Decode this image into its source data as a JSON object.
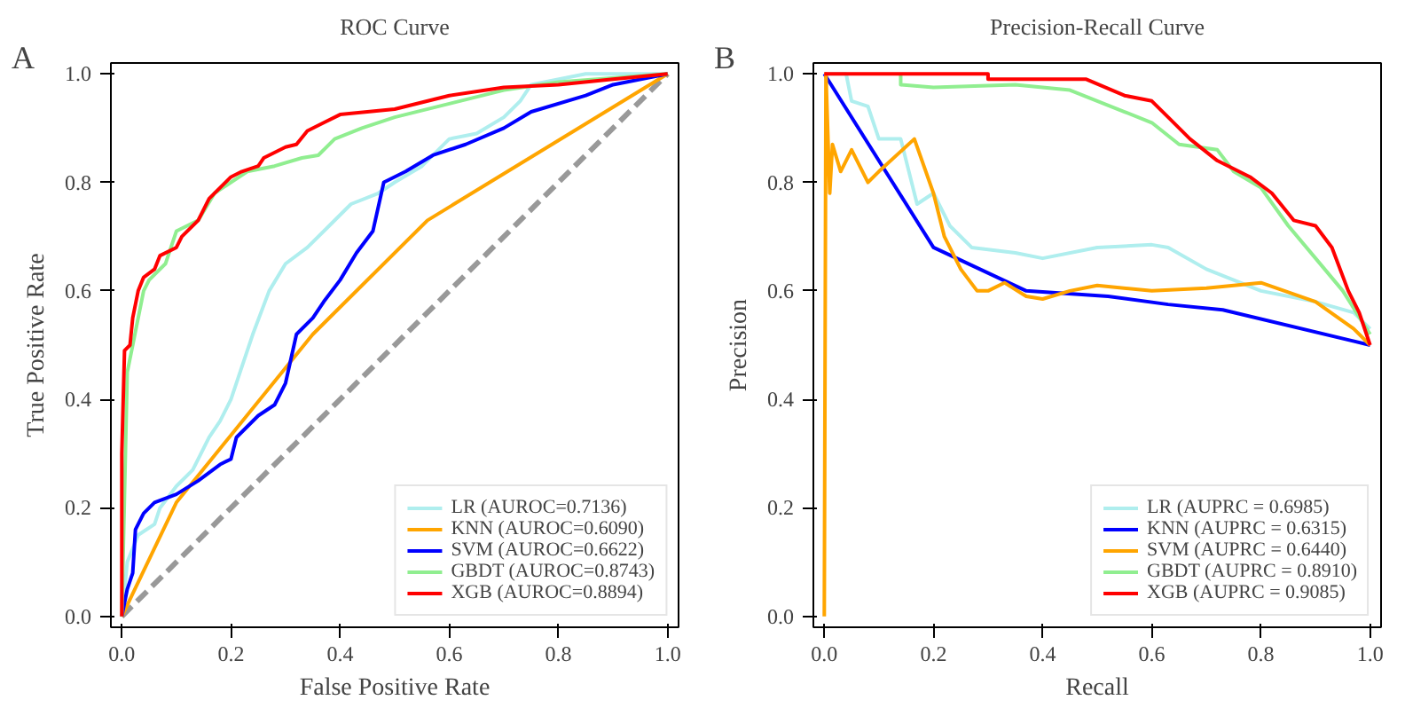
{
  "chart_data": [
    {
      "type": "line",
      "title": "ROC Curve",
      "xlabel": "False Positive Rate",
      "ylabel": "True Positive Rate",
      "annotations": [
        "A"
      ],
      "legend": "bottom right",
      "grid": false,
      "xlim": [
        -0.02,
        1.02
      ],
      "ylim": [
        -0.02,
        1.02
      ],
      "xticks": [
        {
          "value": 0,
          "label": "0.0"
        },
        {
          "value": 0.2,
          "label": "0.2"
        },
        {
          "value": 0.4,
          "label": "0.4"
        },
        {
          "value": 0.6,
          "label": "0.6"
        },
        {
          "value": 0.8,
          "label": "0.8"
        },
        {
          "value": 1,
          "label": "1.0"
        }
      ],
      "yticks": [
        {
          "value": 0,
          "label": "0.0"
        },
        {
          "value": 0.2,
          "label": "0.2"
        },
        {
          "value": 0.4,
          "label": "0.4"
        },
        {
          "value": 0.6,
          "label": "0.6"
        },
        {
          "value": 0.8,
          "label": "0.8"
        },
        {
          "value": 1,
          "label": "1.0"
        }
      ],
      "series": [
        {
          "color": "#999999",
          "line_style": "dashed",
          "x": [
            0,
            1
          ],
          "values": [
            0,
            1
          ]
        },
        {
          "name": "LR (AUROC=0.7136)",
          "color": "#afeeee",
          "x": [
            0,
            0.01,
            0.03,
            0.06,
            0.07,
            0.1,
            0.13,
            0.16,
            0.18,
            0.2,
            0.22,
            0.24,
            0.27,
            0.3,
            0.34,
            0.38,
            0.42,
            0.47,
            0.5,
            0.55,
            0.6,
            0.65,
            0.7,
            0.73,
            0.75,
            0.85,
            1
          ],
          "values": [
            0,
            0.1,
            0.15,
            0.17,
            0.2,
            0.24,
            0.27,
            0.33,
            0.36,
            0.4,
            0.46,
            0.52,
            0.6,
            0.65,
            0.68,
            0.72,
            0.76,
            0.78,
            0.8,
            0.83,
            0.88,
            0.89,
            0.92,
            0.95,
            0.98,
            1,
            1
          ]
        },
        {
          "name": "KNN (AUROC=0.6090)",
          "color": "#ffa500",
          "x": [
            0,
            0.1,
            0.35,
            0.56,
            1
          ],
          "values": [
            0,
            0.21,
            0.52,
            0.73,
            1
          ]
        },
        {
          "name": "SVM (AUROC=0.6622)",
          "color": "#0000ff",
          "x": [
            0,
            0.01,
            0.02,
            0.025,
            0.04,
            0.06,
            0.1,
            0.14,
            0.18,
            0.2,
            0.21,
            0.25,
            0.28,
            0.3,
            0.32,
            0.35,
            0.37,
            0.4,
            0.43,
            0.46,
            0.48,
            0.52,
            0.57,
            0.63,
            0.7,
            0.75,
            0.85,
            0.9,
            1
          ],
          "values": [
            0,
            0.05,
            0.08,
            0.16,
            0.19,
            0.21,
            0.225,
            0.25,
            0.28,
            0.29,
            0.33,
            0.37,
            0.39,
            0.43,
            0.52,
            0.55,
            0.58,
            0.62,
            0.67,
            0.71,
            0.8,
            0.82,
            0.85,
            0.87,
            0.9,
            0.93,
            0.96,
            0.98,
            1
          ]
        },
        {
          "name": "GBDT (AUROC=0.8743)",
          "color": "#90ee90",
          "x": [
            0,
            0.01,
            0.02,
            0.04,
            0.05,
            0.08,
            0.1,
            0.14,
            0.17,
            0.2,
            0.23,
            0.28,
            0.33,
            0.36,
            0.39,
            0.44,
            0.5,
            0.6,
            0.7,
            0.8,
            1
          ],
          "values": [
            0,
            0.45,
            0.5,
            0.6,
            0.62,
            0.65,
            0.71,
            0.73,
            0.78,
            0.8,
            0.82,
            0.83,
            0.845,
            0.85,
            0.88,
            0.9,
            0.92,
            0.945,
            0.97,
            0.985,
            1
          ]
        },
        {
          "name": "XGB (AUROC=0.8894)",
          "color": "#ff0000",
          "x": [
            0,
            0,
            0.005,
            0.015,
            0.02,
            0.03,
            0.04,
            0.06,
            0.07,
            0.1,
            0.11,
            0.14,
            0.16,
            0.18,
            0.2,
            0.22,
            0.25,
            0.26,
            0.3,
            0.32,
            0.34,
            0.37,
            0.4,
            0.5,
            0.6,
            0.7,
            0.8,
            0.9,
            1
          ],
          "values": [
            0,
            0.3,
            0.49,
            0.5,
            0.55,
            0.6,
            0.625,
            0.64,
            0.665,
            0.68,
            0.7,
            0.73,
            0.77,
            0.79,
            0.81,
            0.82,
            0.83,
            0.845,
            0.865,
            0.87,
            0.895,
            0.91,
            0.925,
            0.935,
            0.96,
            0.975,
            0.98,
            0.99,
            1
          ]
        }
      ]
    },
    {
      "type": "line",
      "title": "Precision-Recall Curve",
      "xlabel": "Recall",
      "ylabel": "Precision",
      "annotations": [
        "B"
      ],
      "legend": "bottom right",
      "grid": false,
      "xlim": [
        -0.02,
        1.02
      ],
      "ylim": [
        -0.02,
        1.02
      ],
      "xticks": [
        {
          "value": 0,
          "label": "0.0"
        },
        {
          "value": 0.2,
          "label": "0.2"
        },
        {
          "value": 0.4,
          "label": "0.4"
        },
        {
          "value": 0.6,
          "label": "0.6"
        },
        {
          "value": 0.8,
          "label": "0.8"
        },
        {
          "value": 1,
          "label": "1.0"
        }
      ],
      "yticks": [
        {
          "value": 0,
          "label": "0.0"
        },
        {
          "value": 0.2,
          "label": "0.2"
        },
        {
          "value": 0.4,
          "label": "0.4"
        },
        {
          "value": 0.6,
          "label": "0.6"
        },
        {
          "value": 0.8,
          "label": "0.8"
        },
        {
          "value": 1,
          "label": "1.0"
        }
      ],
      "series": [
        {
          "name": "LR (AUPRC = 0.6985)",
          "color": "#afeeee",
          "x": [
            0,
            0.04,
            0.05,
            0.08,
            0.1,
            0.14,
            0.17,
            0.2,
            0.23,
            0.27,
            0.35,
            0.4,
            0.5,
            0.6,
            0.63,
            0.7,
            0.8,
            0.9,
            0.97,
            1
          ],
          "values": [
            1,
            1,
            0.95,
            0.94,
            0.88,
            0.88,
            0.76,
            0.78,
            0.72,
            0.68,
            0.67,
            0.66,
            0.68,
            0.685,
            0.68,
            0.64,
            0.6,
            0.58,
            0.56,
            0.53
          ]
        },
        {
          "name": "KNN (AUPRC = 0.6315)",
          "color": "#0000ff",
          "x": [
            0,
            0.2,
            0.37,
            0.52,
            0.63,
            0.73,
            1
          ],
          "values": [
            1,
            0.68,
            0.6,
            0.59,
            0.575,
            0.565,
            0.5
          ]
        },
        {
          "name": "SVM (AUPRC = 0.6440)",
          "color": "#ffa500",
          "x": [
            0,
            0.003,
            0.01,
            0.015,
            0.03,
            0.05,
            0.08,
            0.1,
            0.165,
            0.2,
            0.22,
            0.25,
            0.28,
            0.3,
            0.33,
            0.37,
            0.4,
            0.45,
            0.5,
            0.6,
            0.7,
            0.8,
            0.9,
            0.97,
            1
          ],
          "values": [
            0,
            1,
            0.78,
            0.87,
            0.82,
            0.86,
            0.8,
            0.82,
            0.88,
            0.78,
            0.7,
            0.64,
            0.6,
            0.6,
            0.615,
            0.59,
            0.585,
            0.6,
            0.61,
            0.6,
            0.605,
            0.615,
            0.58,
            0.53,
            0.5
          ]
        },
        {
          "name": "GBDT (AUPRC = 0.8910)",
          "color": "#90ee90",
          "x": [
            0.14,
            0.14,
            0.2,
            0.35,
            0.45,
            0.55,
            0.6,
            0.65,
            0.72,
            0.75,
            0.8,
            0.85,
            0.9,
            0.95,
            1
          ],
          "values": [
            1,
            0.98,
            0.975,
            0.98,
            0.97,
            0.93,
            0.91,
            0.87,
            0.86,
            0.82,
            0.79,
            0.72,
            0.66,
            0.6,
            0.52
          ]
        },
        {
          "name": "XGB (AUPRC = 0.9085)",
          "color": "#ff0000",
          "x": [
            0,
            0.3,
            0.3,
            0.48,
            0.55,
            0.6,
            0.63,
            0.67,
            0.72,
            0.78,
            0.82,
            0.86,
            0.9,
            0.93,
            0.96,
            0.98,
            1
          ],
          "values": [
            1,
            1,
            0.99,
            0.99,
            0.96,
            0.95,
            0.92,
            0.88,
            0.84,
            0.81,
            0.78,
            0.73,
            0.72,
            0.68,
            0.6,
            0.56,
            0.5
          ]
        }
      ]
    }
  ]
}
